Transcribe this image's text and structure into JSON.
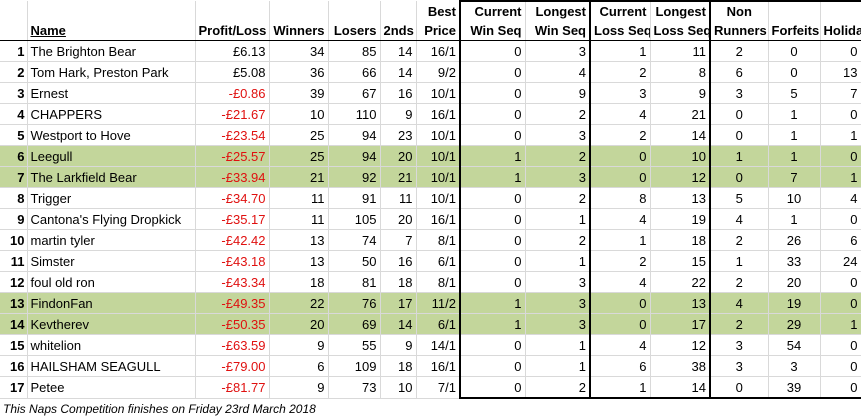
{
  "headers": {
    "row1": {
      "best": "Best",
      "current_win": "Current",
      "longest_win": "Longest",
      "current_loss": "Current",
      "longest_loss": "Longest",
      "non": "Non"
    },
    "row2": {
      "name": "Name",
      "profit": "Profit/Loss",
      "winners": "Winners",
      "losers": "Losers",
      "seconds": "2nds",
      "price": "Price",
      "win_seq": "Win Seq",
      "lwin_seq": "Win Seq",
      "loss_seq": "Loss Seq",
      "lloss_seq": "Loss Seq",
      "runners": "Runners",
      "forfeits": "Forfeits",
      "holiday": "Holiday"
    }
  },
  "rows": [
    {
      "rank": "1",
      "name": "The Brighton Bear",
      "profit": "£6.13",
      "winners": "34",
      "losers": "85",
      "seconds": "14",
      "price": "16/1",
      "cur_win": "0",
      "long_win": "3",
      "cur_loss": "1",
      "long_loss": "11",
      "non_runners": "2",
      "forfeits": "0",
      "holiday": "0"
    },
    {
      "rank": "2",
      "name": "Tom Hark, Preston Park",
      "profit": "£5.08",
      "winners": "36",
      "losers": "66",
      "seconds": "14",
      "price": "9/2",
      "cur_win": "0",
      "long_win": "4",
      "cur_loss": "2",
      "long_loss": "8",
      "non_runners": "6",
      "forfeits": "0",
      "holiday": "13"
    },
    {
      "rank": "3",
      "name": "Ernest",
      "profit": "-£0.86",
      "winners": "39",
      "losers": "67",
      "seconds": "16",
      "price": "10/1",
      "cur_win": "0",
      "long_win": "9",
      "cur_loss": "3",
      "long_loss": "9",
      "non_runners": "3",
      "forfeits": "5",
      "holiday": "7"
    },
    {
      "rank": "4",
      "name": "CHAPPERS",
      "profit": "-£21.67",
      "winners": "10",
      "losers": "110",
      "seconds": "9",
      "price": "16/1",
      "cur_win": "0",
      "long_win": "2",
      "cur_loss": "4",
      "long_loss": "21",
      "non_runners": "0",
      "forfeits": "1",
      "holiday": "0"
    },
    {
      "rank": "5",
      "name": "Westport to Hove",
      "profit": "-£23.54",
      "winners": "25",
      "losers": "94",
      "seconds": "23",
      "price": "10/1",
      "cur_win": "0",
      "long_win": "3",
      "cur_loss": "2",
      "long_loss": "14",
      "non_runners": "0",
      "forfeits": "1",
      "holiday": "1"
    },
    {
      "rank": "6",
      "name": "Leegull",
      "profit": "-£25.57",
      "winners": "25",
      "losers": "94",
      "seconds": "20",
      "price": "10/1",
      "cur_win": "1",
      "long_win": "2",
      "cur_loss": "0",
      "long_loss": "10",
      "non_runners": "1",
      "forfeits": "1",
      "holiday": "0"
    },
    {
      "rank": "7",
      "name": "The Larkfield Bear",
      "profit": "-£33.94",
      "winners": "21",
      "losers": "92",
      "seconds": "21",
      "price": "10/1",
      "cur_win": "1",
      "long_win": "3",
      "cur_loss": "0",
      "long_loss": "12",
      "non_runners": "0",
      "forfeits": "7",
      "holiday": "1"
    },
    {
      "rank": "8",
      "name": "Trigger",
      "profit": "-£34.70",
      "winners": "11",
      "losers": "91",
      "seconds": "11",
      "price": "10/1",
      "cur_win": "0",
      "long_win": "2",
      "cur_loss": "8",
      "long_loss": "13",
      "non_runners": "5",
      "forfeits": "10",
      "holiday": "4"
    },
    {
      "rank": "9",
      "name": "Cantona's Flying Dropkick",
      "profit": "-£35.17",
      "winners": "11",
      "losers": "105",
      "seconds": "20",
      "price": "16/1",
      "cur_win": "0",
      "long_win": "1",
      "cur_loss": "4",
      "long_loss": "19",
      "non_runners": "4",
      "forfeits": "1",
      "holiday": "0"
    },
    {
      "rank": "10",
      "name": "martin tyler",
      "profit": "-£42.42",
      "winners": "13",
      "losers": "74",
      "seconds": "7",
      "price": "8/1",
      "cur_win": "0",
      "long_win": "2",
      "cur_loss": "1",
      "long_loss": "18",
      "non_runners": "2",
      "forfeits": "26",
      "holiday": "6"
    },
    {
      "rank": "11",
      "name": "Simster",
      "profit": "-£43.18",
      "winners": "13",
      "losers": "50",
      "seconds": "16",
      "price": "6/1",
      "cur_win": "0",
      "long_win": "1",
      "cur_loss": "2",
      "long_loss": "15",
      "non_runners": "1",
      "forfeits": "33",
      "holiday": "24"
    },
    {
      "rank": "12",
      "name": "foul old ron",
      "profit": "-£43.34",
      "winners": "18",
      "losers": "81",
      "seconds": "18",
      "price": "8/1",
      "cur_win": "0",
      "long_win": "3",
      "cur_loss": "4",
      "long_loss": "22",
      "non_runners": "2",
      "forfeits": "20",
      "holiday": "0"
    },
    {
      "rank": "13",
      "name": "FindonFan",
      "profit": "-£49.35",
      "winners": "22",
      "losers": "76",
      "seconds": "17",
      "price": "11/2",
      "cur_win": "1",
      "long_win": "3",
      "cur_loss": "0",
      "long_loss": "13",
      "non_runners": "4",
      "forfeits": "19",
      "holiday": "0"
    },
    {
      "rank": "14",
      "name": "Kevtherev",
      "profit": "-£50.35",
      "winners": "20",
      "losers": "69",
      "seconds": "14",
      "price": "6/1",
      "cur_win": "1",
      "long_win": "3",
      "cur_loss": "0",
      "long_loss": "17",
      "non_runners": "2",
      "forfeits": "29",
      "holiday": "1"
    },
    {
      "rank": "15",
      "name": "whitelion",
      "profit": "-£63.59",
      "winners": "9",
      "losers": "55",
      "seconds": "9",
      "price": "14/1",
      "cur_win": "0",
      "long_win": "1",
      "cur_loss": "4",
      "long_loss": "12",
      "non_runners": "3",
      "forfeits": "54",
      "holiday": "0"
    },
    {
      "rank": "16",
      "name": "HAILSHAM SEAGULL",
      "profit": "-£79.00",
      "winners": "6",
      "losers": "109",
      "seconds": "18",
      "price": "16/1",
      "cur_win": "0",
      "long_win": "1",
      "cur_loss": "6",
      "long_loss": "38",
      "non_runners": "3",
      "forfeits": "3",
      "holiday": "0"
    },
    {
      "rank": "17",
      "name": "Petee",
      "profit": "-£81.77",
      "winners": "9",
      "losers": "73",
      "seconds": "10",
      "price": "7/1",
      "cur_win": "0",
      "long_win": "2",
      "cur_loss": "1",
      "long_loss": "14",
      "non_runners": "0",
      "forfeits": "39",
      "holiday": "0"
    }
  ],
  "highlighted_ranks": [
    "6",
    "7",
    "13",
    "14"
  ],
  "colors": {
    "highlight": "#c3d69b",
    "negative": "#e0100f"
  },
  "footer": "This Naps Competition finishes on Friday 23rd March 2018"
}
